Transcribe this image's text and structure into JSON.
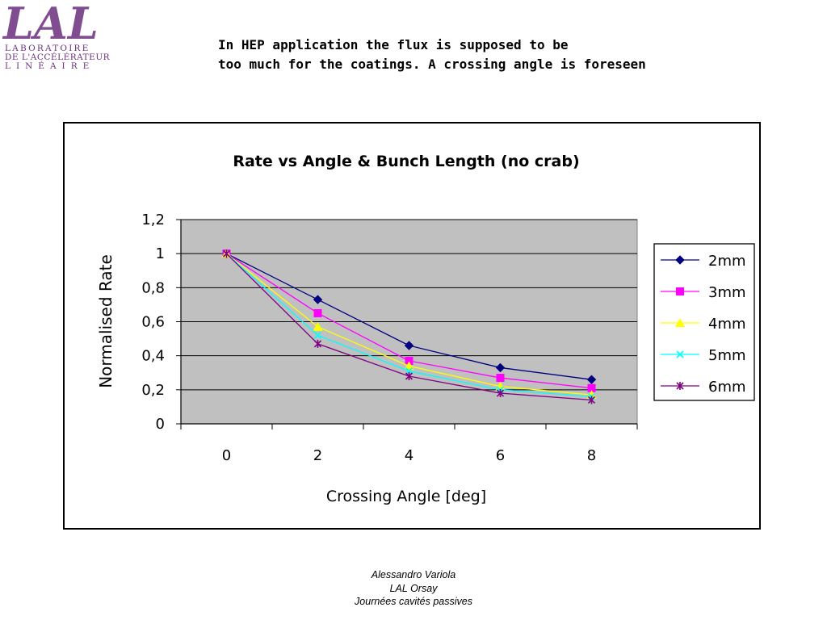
{
  "logo": {
    "mark": "LAL",
    "line1": "LABORATOIRE",
    "line2": "DE L'ACCÉLÉRATEUR",
    "line3": "LINÉAIRE"
  },
  "note": {
    "line1": "In HEP application the flux is supposed to be",
    "line2": "too much for the coatings. A crossing angle is foreseen"
  },
  "footer": {
    "line1": "Alessandro Variola",
    "line2": "LAL Orsay",
    "line3": "Journées cavités passives"
  },
  "colors": {
    "plot_bg": "#c0c0c0",
    "logo": "#6a2f7d"
  },
  "chart_data": {
    "type": "line",
    "title": "Rate vs Angle & Bunch Length (no crab)",
    "xlabel": "Crossing Angle [deg]",
    "ylabel": "Normalised Rate",
    "categories": [
      "0",
      "2",
      "4",
      "6",
      "8"
    ],
    "ylim": [
      0,
      1.2
    ],
    "yticks": [
      "0",
      "0,2",
      "0,4",
      "0,6",
      "0,8",
      "1",
      "1,2"
    ],
    "grid": true,
    "legend_position": "right",
    "series": [
      {
        "name": "2mm",
        "color": "#000080",
        "marker": "diamond",
        "values": [
          1.0,
          0.73,
          0.46,
          0.33,
          0.26
        ]
      },
      {
        "name": "3mm",
        "color": "#ff00ff",
        "marker": "square",
        "values": [
          1.0,
          0.65,
          0.37,
          0.27,
          0.21
        ]
      },
      {
        "name": "4mm",
        "color": "#ffff00",
        "marker": "triangle",
        "values": [
          1.0,
          0.57,
          0.34,
          0.22,
          0.17
        ]
      },
      {
        "name": "5mm",
        "color": "#00ffff",
        "marker": "x",
        "values": [
          1.0,
          0.52,
          0.31,
          0.2,
          0.16
        ]
      },
      {
        "name": "6mm",
        "color": "#800080",
        "marker": "star",
        "values": [
          1.0,
          0.47,
          0.28,
          0.18,
          0.14
        ]
      }
    ]
  }
}
